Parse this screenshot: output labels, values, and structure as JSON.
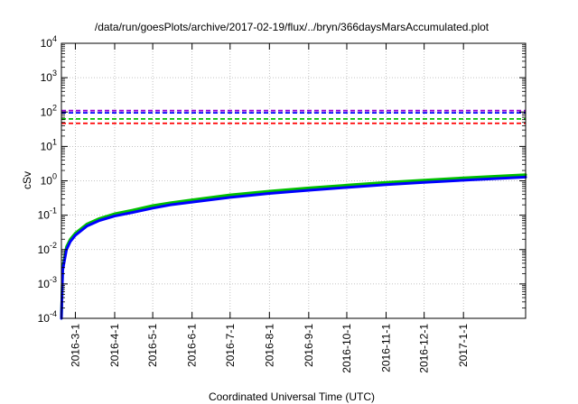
{
  "chart_data": {
    "type": "line",
    "title": "/data/run/goesPlots/archive/2017-02-19/flux/../bryn/366daysMarsAccumulated.plot",
    "xlabel": "Coordinated Universal Time (UTC)",
    "ylabel": "cSv",
    "yscale": "log",
    "ylim": [
      0.0001,
      10000
    ],
    "xlim": [
      "2016-02-19",
      "2017-02-19"
    ],
    "grid": true,
    "y_ticks": [
      {
        "base": "10",
        "exp": "-4",
        "value": 0.0001
      },
      {
        "base": "10",
        "exp": "-3",
        "value": 0.001
      },
      {
        "base": "10",
        "exp": "-2",
        "value": 0.01
      },
      {
        "base": "10",
        "exp": "-1",
        "value": 0.1
      },
      {
        "base": "10",
        "exp": "0",
        "value": 1
      },
      {
        "base": "10",
        "exp": "1",
        "value": 10
      },
      {
        "base": "10",
        "exp": "2",
        "value": 100
      },
      {
        "base": "10",
        "exp": "3",
        "value": 1000
      },
      {
        "base": "10",
        "exp": "4",
        "value": 10000
      }
    ],
    "x_ticks": [
      {
        "label": "2016-3-1",
        "date": "2016-03-01"
      },
      {
        "label": "2016-4-1",
        "date": "2016-04-01"
      },
      {
        "label": "2016-5-1",
        "date": "2016-05-01"
      },
      {
        "label": "2016-6-1",
        "date": "2016-06-01"
      },
      {
        "label": "2016-7-1",
        "date": "2016-07-01"
      },
      {
        "label": "2016-8-1",
        "date": "2016-08-01"
      },
      {
        "label": "2016-9-1",
        "date": "2016-09-01"
      },
      {
        "label": "2016-10-1",
        "date": "2016-10-01"
      },
      {
        "label": "2016-11-1",
        "date": "2016-11-01"
      },
      {
        "label": "2016-12-1",
        "date": "2016-12-01"
      },
      {
        "label": "2017-1-1",
        "date": "2017-01-01"
      }
    ],
    "reference_lines": [
      {
        "value": 110,
        "color": "#9400d3",
        "style": "dashed"
      },
      {
        "value": 95,
        "color": "#0000ff",
        "style": "dashed"
      },
      {
        "value": 63,
        "color": "#00c000",
        "style": "dashed"
      },
      {
        "value": 47,
        "color": "#ff0000",
        "style": "dashed"
      }
    ],
    "series": [
      {
        "color": "#00c000",
        "points": [
          [
            "2016-02-19",
            0.0001
          ],
          [
            "2016-02-20",
            0.003
          ],
          [
            "2016-02-23",
            0.012
          ],
          [
            "2016-02-26",
            0.02
          ],
          [
            "2016-03-01",
            0.03
          ],
          [
            "2016-03-10",
            0.055
          ],
          [
            "2016-03-20",
            0.08
          ],
          [
            "2016-04-01",
            0.11
          ],
          [
            "2016-04-15",
            0.14
          ],
          [
            "2016-05-01",
            0.19
          ],
          [
            "2016-05-15",
            0.23
          ],
          [
            "2016-06-01",
            0.28
          ],
          [
            "2016-07-01",
            0.39
          ],
          [
            "2016-08-01",
            0.5
          ],
          [
            "2016-09-01",
            0.62
          ],
          [
            "2016-10-01",
            0.75
          ],
          [
            "2016-11-01",
            0.9
          ],
          [
            "2016-12-01",
            1.05
          ],
          [
            "2017-01-01",
            1.22
          ],
          [
            "2017-02-19",
            1.5
          ]
        ]
      },
      {
        "color": "#0000ff",
        "points": [
          [
            "2016-02-19",
            0.0001
          ],
          [
            "2016-02-20",
            0.0025
          ],
          [
            "2016-02-23",
            0.01
          ],
          [
            "2016-02-26",
            0.017
          ],
          [
            "2016-03-01",
            0.026
          ],
          [
            "2016-03-10",
            0.048
          ],
          [
            "2016-03-20",
            0.07
          ],
          [
            "2016-04-01",
            0.095
          ],
          [
            "2016-04-15",
            0.12
          ],
          [
            "2016-05-01",
            0.16
          ],
          [
            "2016-05-15",
            0.2
          ],
          [
            "2016-06-01",
            0.24
          ],
          [
            "2016-07-01",
            0.33
          ],
          [
            "2016-08-01",
            0.43
          ],
          [
            "2016-09-01",
            0.53
          ],
          [
            "2016-10-01",
            0.64
          ],
          [
            "2016-11-01",
            0.77
          ],
          [
            "2016-12-01",
            0.9
          ],
          [
            "2017-01-01",
            1.04
          ],
          [
            "2017-02-19",
            1.28
          ]
        ]
      }
    ]
  }
}
